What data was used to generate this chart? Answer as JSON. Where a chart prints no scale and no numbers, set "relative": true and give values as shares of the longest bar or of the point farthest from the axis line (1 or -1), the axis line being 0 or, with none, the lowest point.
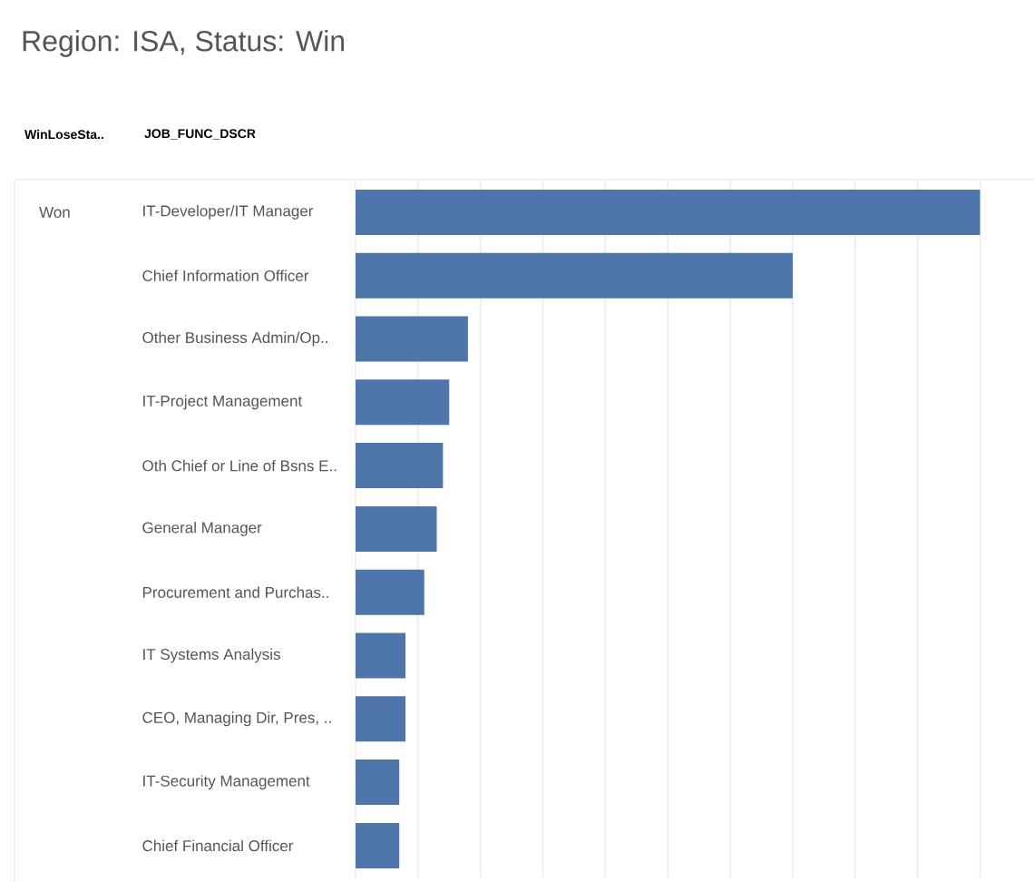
{
  "chart_data": {
    "type": "bar",
    "orientation": "horizontal",
    "relative": true,
    "title": "Region: ISA, Status: Win",
    "ylabel": "JOB_FUNC_DSCR",
    "annotations": [
      "WinLoseSta..",
      "Won"
    ],
    "categories": [
      "IT-Developer/IT Manager",
      "Chief Information Officer",
      "Other Business Admin/Op..",
      "IT-Project Management",
      "Oth Chief or Line of Bsns E..",
      "General Manager",
      "Procurement and Purchas..",
      "IT Systems Analysis",
      "CEO, Managing Dir, Pres, ..",
      "IT-Security Management",
      "Chief Financial Officer"
    ],
    "values": [
      1,
      0.7,
      0.18,
      0.15,
      0.14,
      0.13,
      0.11,
      0.08,
      0.08,
      0.07,
      0.07
    ],
    "color": "#4f76ab",
    "grid": "x"
  }
}
